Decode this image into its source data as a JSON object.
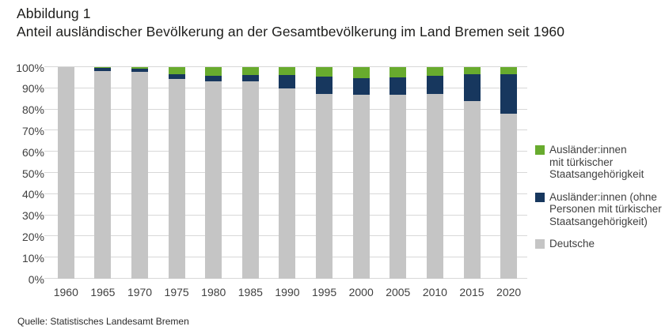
{
  "header": {
    "figure_label": "Abbildung 1",
    "title": "Anteil ausländischer Bevölkerung an der Gesamtbevölkerung im Land Bremen seit 1960"
  },
  "source": "Quelle: Statistisches Landesamt Bremen",
  "colors": {
    "green": "#68ab2e",
    "navy": "#17375e",
    "gray": "#c5c5c5",
    "gridline": "#d8d8d8"
  },
  "chart_data": {
    "type": "bar",
    "stacked": true,
    "title": "Anteil ausländischer Bevölkerung an der Gesamtbevölkerung im Land Bremen seit 1960",
    "xlabel": "",
    "ylabel": "",
    "ylim": [
      0,
      100
    ],
    "grid": true,
    "legend_position": "right",
    "categories": [
      "1960",
      "1965",
      "1970",
      "1975",
      "1980",
      "1985",
      "1990",
      "1995",
      "2000",
      "2005",
      "2010",
      "2015",
      "2020"
    ],
    "y_ticks": [
      "0%",
      "10%",
      "20%",
      "30%",
      "40%",
      "50%",
      "60%",
      "70%",
      "80%",
      "90%",
      "100%"
    ],
    "series": [
      {
        "name": "Deutsche",
        "color_key": "gray",
        "values": [
          100,
          98.2,
          97.6,
          94.5,
          93.2,
          93.3,
          90.0,
          87.5,
          87.0,
          87.0,
          87.4,
          84.0,
          78.0
        ]
      },
      {
        "name": "Ausländer:innen (ohne Personen mit türkischer Staatsangehörigkeit)",
        "color_key": "navy",
        "values": [
          0,
          1.5,
          1.6,
          2.3,
          2.6,
          2.9,
          6.2,
          8.0,
          7.8,
          8.2,
          8.5,
          12.5,
          18.8
        ]
      },
      {
        "name": "Ausländer:innen mit türkischer Staatsangehörigkeit",
        "color_key": "green",
        "values": [
          0,
          0.3,
          0.8,
          3.2,
          4.2,
          3.8,
          3.8,
          4.5,
          5.2,
          4.8,
          4.1,
          3.5,
          3.2
        ]
      }
    ],
    "legend": [
      {
        "color_key": "green",
        "label_lines": [
          "Ausländer:innen",
          "mit türkischer",
          "Staatsangehörigkeit"
        ]
      },
      {
        "color_key": "navy",
        "label_lines": [
          "Ausländer:innen (ohne",
          "Personen mit türkischer",
          "Staatsangehörigkeit)"
        ]
      },
      {
        "color_key": "gray",
        "label_lines": [
          "Deutsche"
        ]
      }
    ]
  }
}
